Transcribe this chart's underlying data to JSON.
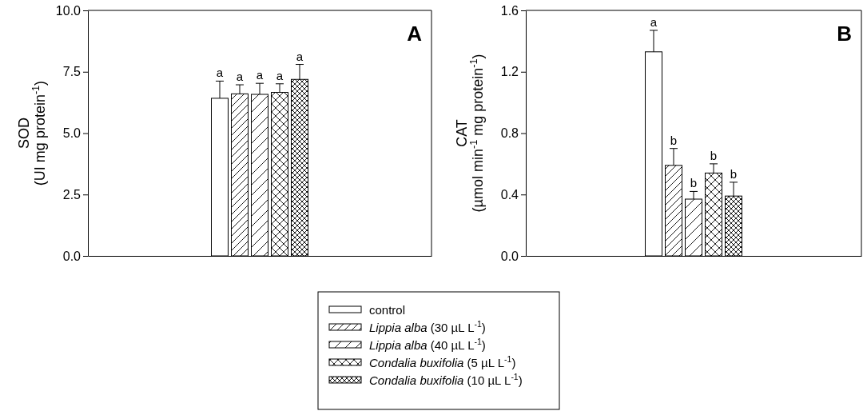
{
  "chart_data": [
    {
      "type": "bar",
      "title": "A",
      "ylabel": "SOD\n(UI mg protein$^{-1}$)",
      "categories": [
        null
      ],
      "ylim": [
        0,
        10
      ],
      "yticks": [
        {
          "value": 0,
          "label": "0.0"
        },
        {
          "value": 2.5,
          "label": "2.5"
        },
        {
          "value": 5,
          "label": "5.0"
        },
        {
          "value": 7.5,
          "label": "7.5"
        },
        {
          "value": 10,
          "label": "10.0"
        }
      ],
      "legend": "bottom",
      "grid": false,
      "series": [
        {
          "name": "control",
          "color": "#ffffff",
          "values": [
            6.42
          ],
          "errors": [
            0.7
          ],
          "value_labels": [
            "a"
          ]
        },
        {
          "name": "Lippia alba (30 µL L$^{-1}$)",
          "color": "#000000",
          "values": [
            6.6
          ],
          "errors": [
            0.37
          ],
          "value_labels": [
            "a"
          ]
        },
        {
          "name": "Lippia alba (40 µL L$^{-1}$)",
          "color": "#000000",
          "values": [
            6.58
          ],
          "errors": [
            0.45
          ],
          "value_labels": [
            "a"
          ]
        },
        {
          "name": "Condalia buxifolia (5 µL L$^{-1}$)",
          "color": "#000000",
          "values": [
            6.66
          ],
          "errors": [
            0.35
          ],
          "value_labels": [
            "a"
          ]
        },
        {
          "name": "Condalia buxifolia (10 µL L$^{-1}$)",
          "color": "#000000",
          "values": [
            7.19
          ],
          "errors": [
            0.61
          ],
          "value_labels": [
            "a"
          ]
        }
      ]
    },
    {
      "type": "bar",
      "title": "B",
      "ylabel": "CAT\n(µmol min$^{-1}$ mg protein$^{-1}$)",
      "categories": [
        null
      ],
      "ylim": [
        0,
        1.6
      ],
      "yticks": [
        {
          "value": 0,
          "label": "0.0"
        },
        0.4,
        0.8,
        1.2,
        1.6
      ],
      "grid": false,
      "series": [
        {
          "color": "#ffffff",
          "values": [
            1.33
          ],
          "errors": [
            0.14
          ],
          "value_labels": [
            "a"
          ]
        },
        {
          "color": "#000000",
          "values": [
            0.59
          ],
          "errors": [
            0.11
          ],
          "value_labels": [
            "b"
          ]
        },
        {
          "color": "#000000",
          "values": [
            0.37
          ],
          "errors": [
            0.05
          ],
          "value_labels": [
            "b"
          ]
        },
        {
          "color": "#000000",
          "values": [
            0.54
          ],
          "errors": [
            0.06
          ],
          "value_labels": [
            "b"
          ]
        },
        {
          "color": "#000000",
          "values": [
            0.39
          ],
          "errors": [
            0.09
          ],
          "value_labels": [
            "b"
          ]
        }
      ]
    }
  ]
}
